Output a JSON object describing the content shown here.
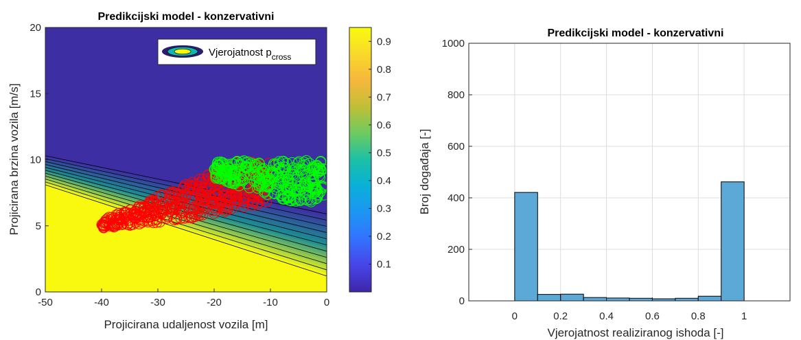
{
  "chart_data": [
    {
      "type": "contour-scatter",
      "title": "Predikcijski model - konzervativni",
      "xlabel": "Projicirana udaljenost vozila [m]",
      "ylabel": "Projicirana brzina vozila [m/s]",
      "xlim": [
        -50,
        0
      ],
      "ylim": [
        0,
        20
      ],
      "xticks": [
        -50,
        -40,
        -30,
        -20,
        -10,
        0
      ],
      "yticks": [
        0,
        5,
        10,
        15,
        20
      ],
      "boundary": {
        "p_max_line": [
          [
            -50,
            10.3
          ],
          [
            0,
            5.9
          ]
        ],
        "p_min_line": [
          [
            -50,
            8.1
          ],
          [
            0,
            1.2
          ]
        ]
      },
      "colors": {
        "low": "#3d2fa3",
        "high": "#f8f90f",
        "contour": "#000000"
      },
      "legend": {
        "main": "Vjerojatnost p",
        "sub": "cross",
        "location": "top-right"
      },
      "colorbar": {
        "range": [
          0,
          0.95
        ],
        "ticks": [
          "0.1",
          "0.2",
          "0.3",
          "0.4",
          "0.5",
          "0.6",
          "0.7",
          "0.8",
          "0.9"
        ]
      },
      "series": [
        {
          "color": "#ff0000",
          "region": {
            "x": [
              -40,
              -10
            ],
            "y": [
              4.7,
              9.8
            ]
          }
        },
        {
          "color": "#00ff00",
          "region": {
            "x": [
              -20,
              -0.5
            ],
            "y": [
              6.7,
              10.0
            ]
          }
        }
      ]
    },
    {
      "type": "bar",
      "title": "Predikcijski model - konzervativni",
      "xlabel": "Vjerojatnost realiziranog ishoda [-]",
      "ylabel": "Broj događaja [-]",
      "xlim": [
        -0.2,
        1.2
      ],
      "ylim": [
        0,
        1000
      ],
      "xticks": [
        "0",
        "0.2",
        "0.4",
        "0.6",
        "0.8",
        "1"
      ],
      "yticks": [
        "0",
        "200",
        "400",
        "600",
        "800",
        "1000"
      ],
      "grid": true,
      "bin_edges": [
        0,
        0.1,
        0.2,
        0.3,
        0.4,
        0.5,
        0.6,
        0.7,
        0.8,
        0.9,
        1.0
      ],
      "values": [
        421,
        25,
        26,
        13,
        11,
        10,
        8,
        10,
        18,
        462
      ],
      "bar_color": "#5ca8d6"
    }
  ]
}
